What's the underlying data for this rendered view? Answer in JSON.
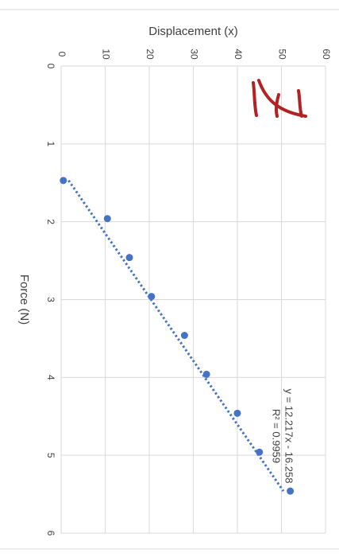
{
  "chart_data": {
    "type": "scatter",
    "orientation": "rotated-90-clockwise",
    "xlabel": "Force (N)",
    "ylabel": "Displacement (x)",
    "xlim": [
      0,
      6
    ],
    "ylim": [
      0,
      60
    ],
    "x_ticks": [
      "0",
      "1",
      "2",
      "3",
      "4",
      "5",
      "6"
    ],
    "y_ticks": [
      "0",
      "10",
      "20",
      "30",
      "40",
      "50",
      "60"
    ],
    "grid": true,
    "series": [
      {
        "color": "#4472c4",
        "x": [
          1.47,
          1.96,
          2.46,
          2.96,
          3.46,
          3.96,
          4.46,
          4.96,
          5.46
        ],
        "y": [
          0.5,
          10.5,
          15.5,
          20.5,
          28,
          33,
          40,
          45,
          52
        ]
      }
    ],
    "trendline": {
      "type": "linear",
      "slope": 12.217,
      "intercept": -16.258,
      "color": "#4472c4",
      "equation": "y = 12.217x - 16.258",
      "r_squared": "R² = 0.9959"
    },
    "annotation_color": "#b22222"
  }
}
